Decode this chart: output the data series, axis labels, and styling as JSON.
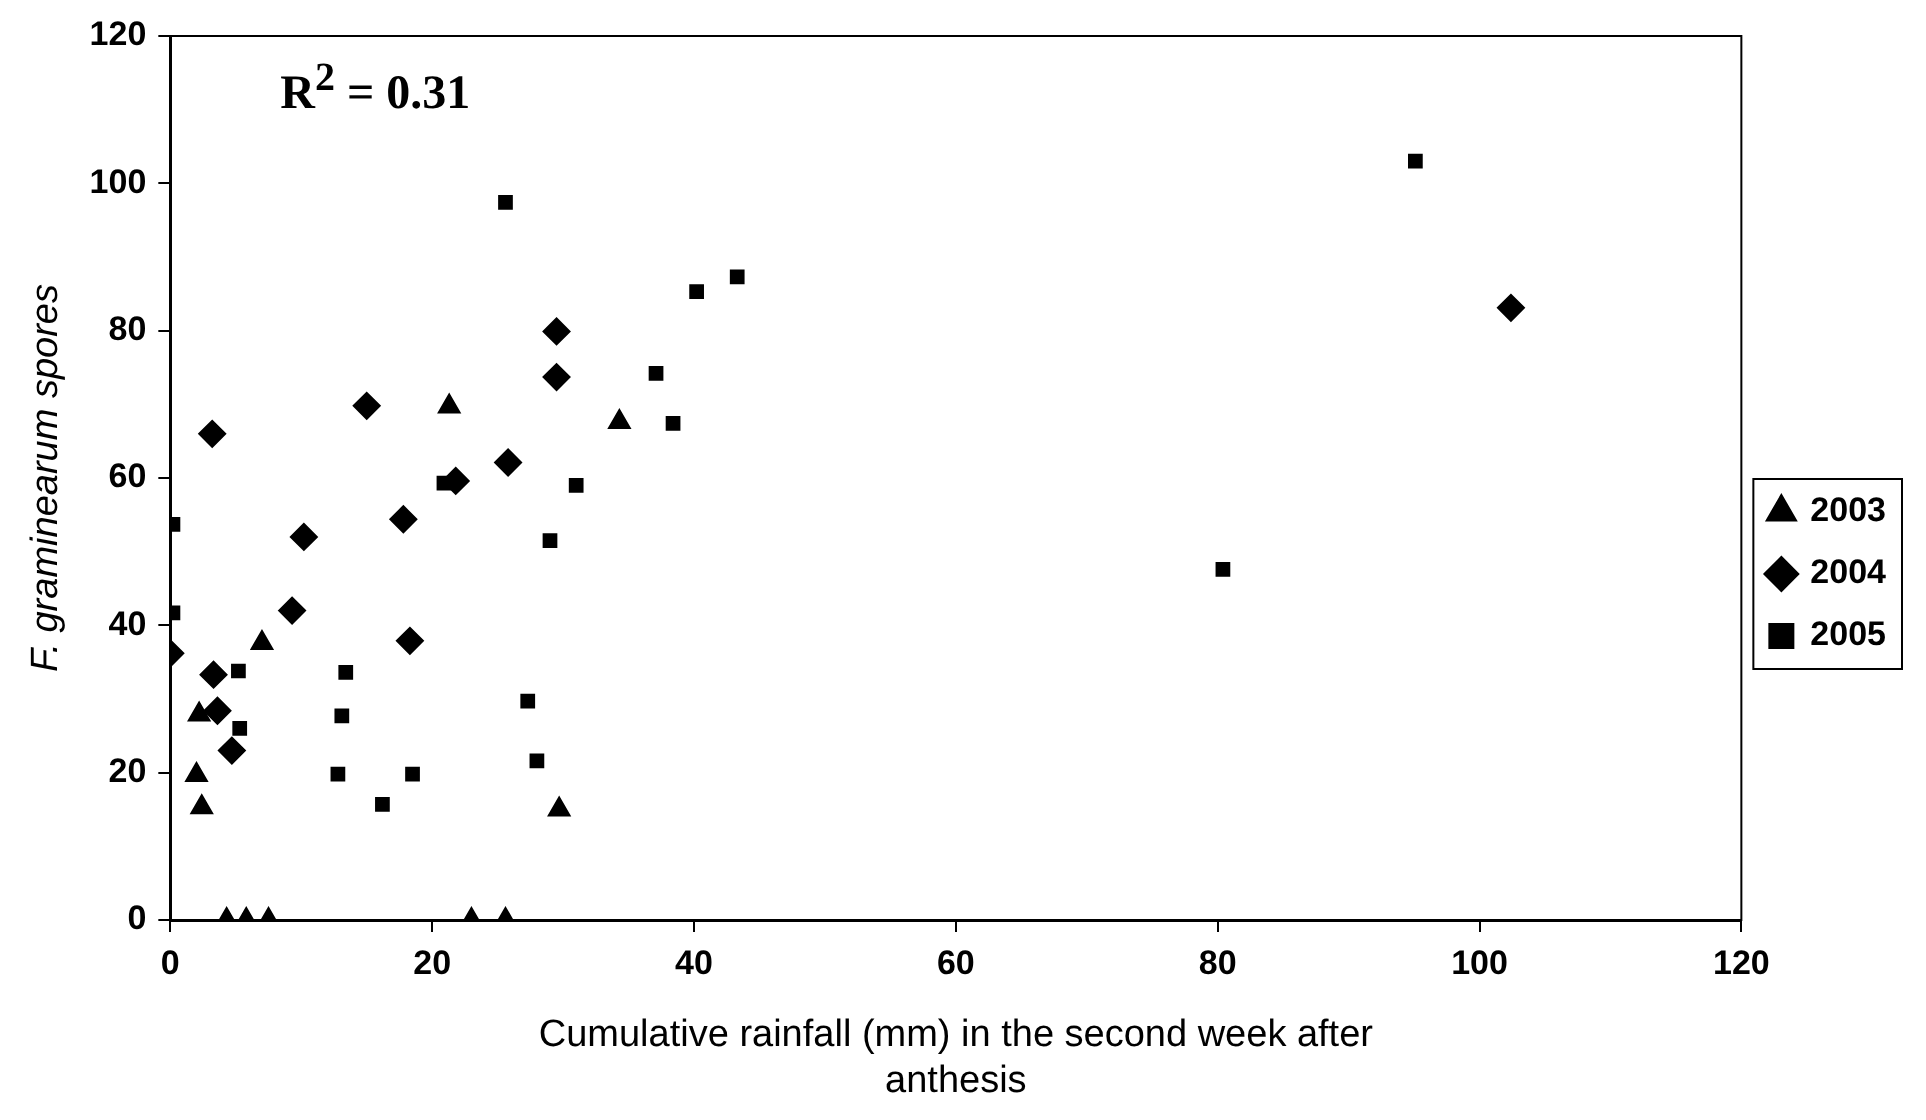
{
  "chart_data": {
    "type": "scatter",
    "xlabel": "Cumulative rainfall (mm) in the second week after anthesis",
    "ylabel": "F. graminearum spores",
    "annotations": [
      "R$^{2}$ = 0.31"
    ],
    "xlim": [
      0,
      120
    ],
    "xticks": [
      0,
      20,
      40,
      60,
      80,
      100,
      120
    ],
    "ylim": [
      0,
      120
    ],
    "yticks": [
      0,
      20,
      40,
      60,
      80,
      100,
      120
    ],
    "grid": false,
    "legend": "right",
    "series": [
      {
        "name": "2003",
        "color": "#000000",
        "marker": "triangle",
        "x": [
          21.3,
          34.3,
          2.2,
          2.0,
          2.4,
          7.0,
          29.7,
          4.3,
          5.8,
          7.5,
          23,
          25.6
        ],
        "values": [
          69.7,
          67.6,
          27.9,
          19.7,
          15.3,
          37.6,
          15.0,
          0,
          0,
          0,
          0,
          0
        ]
      },
      {
        "name": "2004",
        "color": "#000000",
        "marker": "diamond",
        "x": [
          0,
          3.2,
          15,
          10.2,
          17.8,
          21.8,
          25.8,
          29.5,
          29.5,
          9.3,
          18.3,
          3.3,
          3.6,
          4.7,
          102.4
        ],
        "values": [
          36.2,
          66,
          69.8,
          52,
          54.4,
          59.6,
          62.1,
          79.9,
          73.7,
          42,
          37.9,
          33.3,
          28.4,
          23,
          83.1
        ]
      },
      {
        "name": "2005",
        "color": "#000000",
        "marker": "square",
        "x": [
          0.2,
          0.2,
          20.9,
          29,
          31,
          25.6,
          43.3,
          40.2,
          37.1,
          38.4,
          5.2,
          5.3,
          13.4,
          13.1,
          12.8,
          16.2,
          18.5,
          27.3,
          28,
          95.1,
          80.4
        ],
        "values": [
          53.7,
          41.7,
          59.3,
          51.5,
          59,
          97.4,
          87.3,
          85.3,
          74.2,
          67.4,
          33.8,
          26,
          33.6,
          27.7,
          19.8,
          15.7,
          19.8,
          29.7,
          21.6,
          103,
          47.6
        ]
      }
    ]
  }
}
